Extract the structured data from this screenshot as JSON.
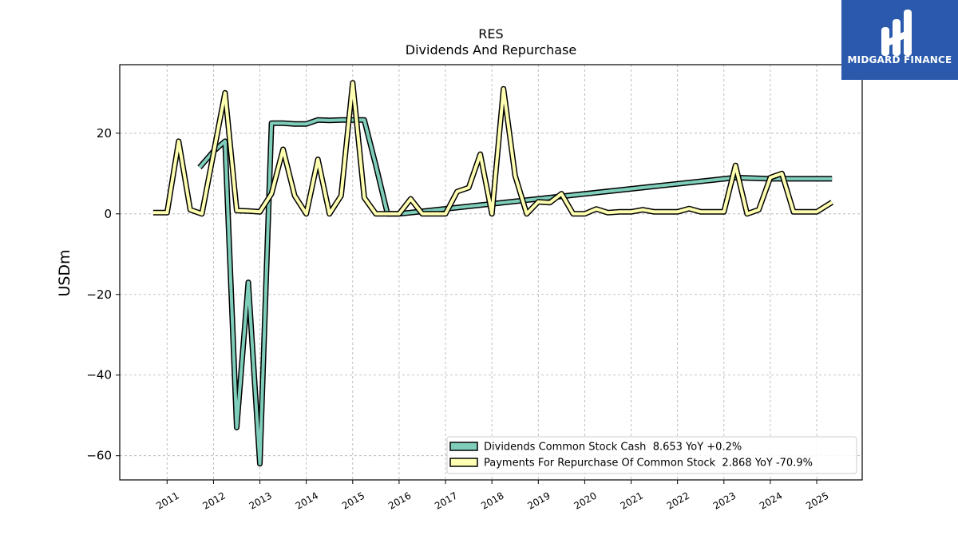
{
  "brand": {
    "name": "MIDGARD FINANCE",
    "bg_color": "#2b5aad"
  },
  "chart_data": {
    "type": "line",
    "title": "RES",
    "subtitle": "Dividends And Repurchase",
    "xlabel": "",
    "ylabel": "USDm",
    "ylim": [
      -66,
      37
    ],
    "xlim": [
      2009.98,
      2025.98
    ],
    "y_ticks": [
      20,
      0,
      -20,
      -40,
      -60
    ],
    "y_tick_labels": [
      "20",
      "0",
      "−20",
      "−40",
      "−60"
    ],
    "x_ticks": [
      2011,
      2012,
      2013,
      2014,
      2015,
      2016,
      2017,
      2018,
      2019,
      2020,
      2021,
      2022,
      2023,
      2024,
      2025
    ],
    "x_tick_labels": [
      "2011",
      "2012",
      "2013",
      "2014",
      "2015",
      "2016",
      "2017",
      "2018",
      "2019",
      "2020",
      "2021",
      "2022",
      "2023",
      "2024",
      "2025"
    ],
    "grid": true,
    "legend_position": "lower-right",
    "series": [
      {
        "name": "Dividends Common Stock Cash",
        "legend_label": "Dividends Common Stock Cash  8.653 YoY +0.2%",
        "color": "#7fcdbb",
        "x": [
          2011.7,
          2012.0,
          2012.25,
          2012.5,
          2012.75,
          2013.0,
          2013.25,
          2013.5,
          2013.75,
          2014.0,
          2014.25,
          2014.5,
          2014.75,
          2015.0,
          2015.25,
          2015.5,
          2015.75,
          2016.0,
          2023.25,
          2024.0,
          2025.33
        ],
        "y": [
          11.5,
          15.5,
          18,
          -53,
          -17,
          -62,
          22.5,
          22.5,
          22.3,
          22.3,
          23.3,
          23.2,
          23.3,
          23.3,
          23.3,
          12,
          0,
          0,
          9.0,
          8.7,
          8.7
        ]
      },
      {
        "name": "Payments For Repurchase Of Common Stock",
        "legend_label": "Payments For Repurchase Of Common Stock  2.868 YoY -70.9%",
        "color": "#ffffb2",
        "x": [
          2010.7,
          2011.0,
          2011.25,
          2011.5,
          2011.75,
          2012.0,
          2012.25,
          2012.5,
          2012.75,
          2013.0,
          2013.25,
          2013.5,
          2013.75,
          2014.0,
          2014.25,
          2014.5,
          2014.75,
          2015.0,
          2015.25,
          2015.5,
          2015.75,
          2016.0,
          2016.25,
          2016.5,
          2016.75,
          2017.0,
          2017.25,
          2017.5,
          2017.75,
          2018.0,
          2018.25,
          2018.5,
          2018.75,
          2019.0,
          2019.25,
          2019.5,
          2019.75,
          2020.0,
          2020.25,
          2020.5,
          2020.75,
          2021.0,
          2021.25,
          2021.5,
          2021.75,
          2022.0,
          2022.25,
          2022.5,
          2022.75,
          2023.0,
          2023.25,
          2023.5,
          2023.75,
          2024.0,
          2024.25,
          2024.5,
          2024.75,
          2025.0,
          2025.33
        ],
        "y": [
          0.3,
          0.3,
          18,
          1,
          0,
          15,
          30,
          0.8,
          0.7,
          0.5,
          5,
          16,
          4.5,
          0,
          13.5,
          0,
          4.5,
          32.5,
          4,
          0,
          0,
          0,
          3.7,
          0,
          0,
          0,
          5.5,
          6.5,
          14.8,
          0,
          31,
          9.5,
          0,
          3,
          2.8,
          5,
          0,
          0,
          1.2,
          0.3,
          0.5,
          0.5,
          1,
          0.5,
          0.5,
          0.5,
          1.3,
          0.5,
          0.5,
          0.5,
          12,
          0,
          1,
          9,
          10,
          0.5,
          0.5,
          0.5,
          2.868
        ]
      }
    ]
  }
}
